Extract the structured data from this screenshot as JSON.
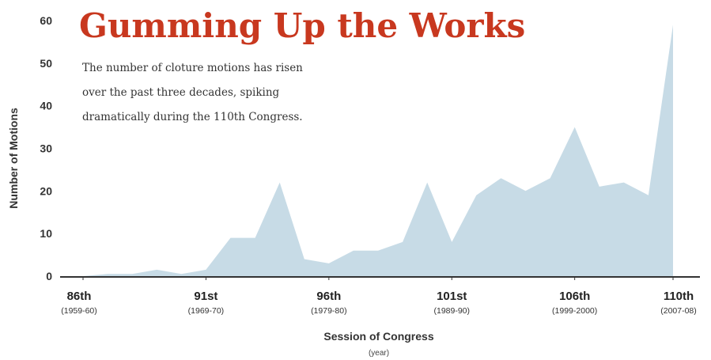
{
  "chart_data": {
    "type": "area",
    "title": "Gumming Up the Works",
    "subtitle_lines": [
      "The number of cloture motions has risen",
      "over the past three decades, spiking",
      "dramatically during the 110th Congress."
    ],
    "xlabel": "Session of Congress",
    "xlabel_sub": "(year)",
    "ylabel": "Number of Motions",
    "ylim": [
      0,
      60
    ],
    "yticks": [
      0,
      10,
      20,
      30,
      40,
      50,
      60
    ],
    "x_ticks": [
      {
        "session": 86,
        "label": "86th",
        "sublabel": "(1959-60)"
      },
      {
        "session": 91,
        "label": "91st",
        "sublabel": "(1969-70)"
      },
      {
        "session": 96,
        "label": "96th",
        "sublabel": "(1979-80)"
      },
      {
        "session": 101,
        "label": "101st",
        "sublabel": "(1989-90)"
      },
      {
        "session": 106,
        "label": "106th",
        "sublabel": "(1999-2000)"
      },
      {
        "session": 110,
        "label": "110th",
        "sublabel": "(2007-08)"
      }
    ],
    "grid": false,
    "colors": {
      "fill": "#c7dbe6",
      "axis": "#333333",
      "title": "#c8381f"
    },
    "series": [
      {
        "x": [
          86,
          87,
          88,
          89,
          90,
          91,
          92,
          93,
          94,
          95,
          96,
          97,
          98,
          99,
          100,
          101,
          102,
          103,
          104,
          105,
          106,
          107,
          108,
          109,
          110
        ],
        "values": [
          0,
          0.5,
          0.5,
          1.5,
          0.5,
          1.5,
          9,
          9,
          22,
          4,
          3,
          6,
          6,
          8,
          22,
          8,
          19,
          23,
          20,
          23,
          35,
          21,
          22,
          19,
          59
        ]
      }
    ]
  }
}
